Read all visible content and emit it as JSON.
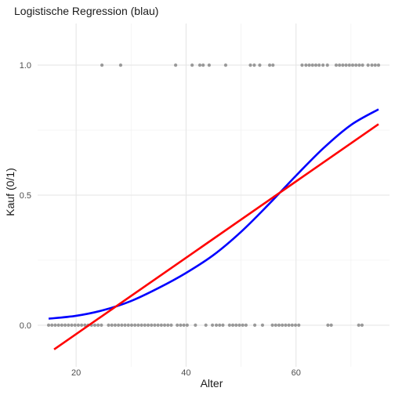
{
  "chart_data": {
    "type": "scatter",
    "title": "Logistische Regression (blau)",
    "xlabel": "Alter",
    "ylabel": "Kauf (0/1)",
    "xlim": [
      13,
      77
    ],
    "ylim": [
      -0.16,
      1.16
    ],
    "xticks": [
      20,
      40,
      60
    ],
    "yticks": [
      0.0,
      0.5,
      1.0
    ],
    "ytick_labels": [
      "0.0",
      "0.5",
      "1.0"
    ],
    "grid": true,
    "points_y1": [
      24.7,
      28.1,
      38.1,
      41.1,
      42.5,
      43.1,
      44.2,
      47.2,
      51.7,
      52.4,
      53.4,
      55.2,
      55.8,
      61.1,
      61.8,
      62.4,
      63.0,
      63.6,
      64.2,
      64.9,
      65.7,
      67.3,
      67.9,
      68.5,
      69.1,
      69.7,
      70.3,
      70.9,
      71.5,
      72.1,
      73.1,
      73.8,
      74.4,
      75.0
    ],
    "points_y0": [
      15.0,
      15.6,
      16.2,
      16.8,
      17.4,
      18.0,
      18.6,
      19.2,
      19.8,
      20.4,
      21.0,
      21.6,
      22.2,
      22.8,
      23.4,
      24.0,
      24.6,
      25.9,
      26.5,
      27.1,
      27.7,
      28.3,
      28.9,
      29.5,
      30.1,
      30.7,
      31.3,
      31.9,
      32.5,
      33.1,
      33.7,
      34.3,
      34.9,
      35.5,
      36.1,
      36.7,
      37.3,
      38.4,
      39.0,
      39.6,
      40.2,
      41.7,
      43.6,
      44.8,
      45.5,
      46.1,
      46.7,
      47.9,
      48.5,
      49.1,
      49.7,
      50.3,
      50.9,
      52.5,
      53.9,
      55.7,
      56.3,
      56.9,
      57.5,
      58.1,
      58.7,
      59.3,
      59.9,
      60.5,
      65.8,
      66.4,
      71.4,
      72.0
    ],
    "series": [
      {
        "type": "line",
        "color": "#0000ff",
        "x": [
          15,
          20,
          25,
          30,
          35,
          40,
          45,
          50,
          55,
          60,
          65,
          70,
          75
        ],
        "y": [
          0.025,
          0.036,
          0.058,
          0.093,
          0.143,
          0.201,
          0.27,
          0.359,
          0.464,
          0.575,
          0.681,
          0.77,
          0.83
        ]
      },
      {
        "type": "line",
        "color": "#ff0000",
        "x": [
          16,
          75
        ],
        "y": [
          -0.093,
          0.773
        ]
      }
    ],
    "point_color": "#999999"
  }
}
